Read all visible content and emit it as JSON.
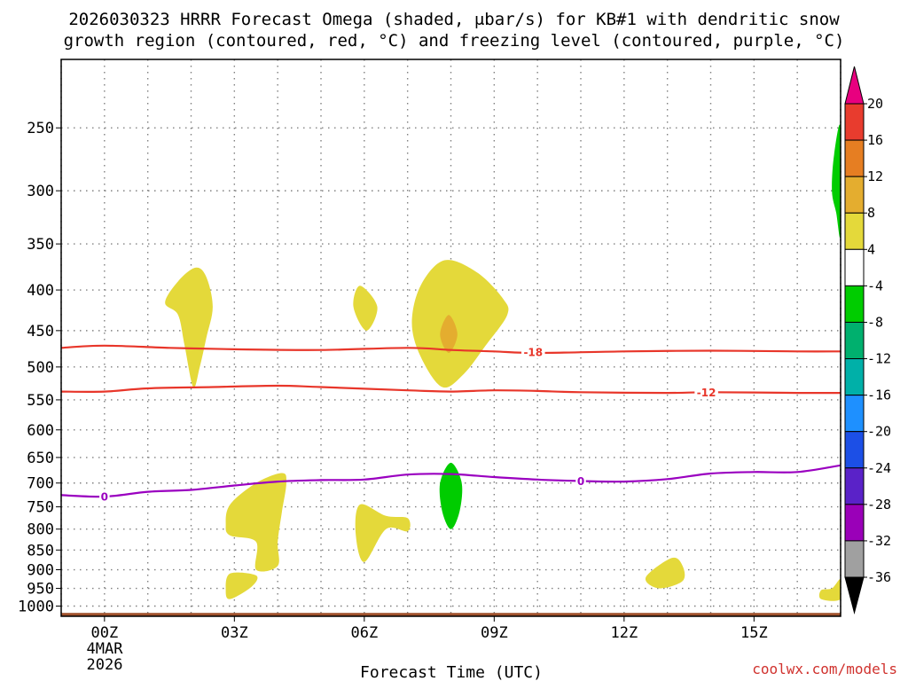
{
  "chart_data": {
    "type": "time-height cross section",
    "title_line1": "2026030323 HRRR Forecast Omega (shaded, μbar/s) for KB#1 with dendritic snow",
    "title_line2": "growth region (contoured, red, °C) and freezing level (contoured, purple, °C)",
    "xlabel": "Forecast Time (UTC)",
    "x_unit": "forecast hour",
    "xlim": [
      -1.0,
      17.0
    ],
    "x_ticks": [
      {
        "hour": 0,
        "label": "00Z"
      },
      {
        "hour": 3,
        "label": "03Z"
      },
      {
        "hour": 6,
        "label": "06Z"
      },
      {
        "hour": 9,
        "label": "09Z"
      },
      {
        "hour": 12,
        "label": "12Z"
      },
      {
        "hour": 15,
        "label": "15Z"
      }
    ],
    "date_label_line1": "4MAR",
    "date_label_line2": "2026",
    "y_unit": "hPa (log-pressure)",
    "ylim": [
      1030,
      205
    ],
    "y_ticks": [
      250,
      300,
      350,
      400,
      450,
      500,
      550,
      600,
      650,
      700,
      750,
      800,
      850,
      900,
      950,
      1000
    ],
    "y_tick_labels": [
      "250",
      "300",
      "350",
      "400",
      "450",
      "500",
      "550",
      "600",
      "650",
      "700",
      "750",
      "800",
      "850",
      "900",
      "950",
      "1000"
    ],
    "grid": true,
    "ground_level_hpa": 1020,
    "colorbar": {
      "levels": [
        "20",
        "16",
        "12",
        "8",
        "4",
        "-4",
        "-8",
        "-12",
        "-16",
        "-20",
        "-24",
        "-28",
        "-32",
        "-36"
      ],
      "colors": [
        "#e8007f",
        "#e83c2e",
        "#e67e22",
        "#e4ad2f",
        "#e4d93a",
        "#ffffff",
        "#00cc00",
        "#00b06e",
        "#00b0a8",
        "#1e90ff",
        "#1c4fe6",
        "#5a22c8",
        "#9a00b8",
        "#a0a0a0",
        "#000000"
      ]
    },
    "contours": [
      {
        "name": "dgz-minus-18",
        "label": "-18",
        "color": "#e8362a",
        "points": [
          [
            -1,
            473
          ],
          [
            0,
            470
          ],
          [
            1.5,
            473
          ],
          [
            3,
            475
          ],
          [
            5,
            476
          ],
          [
            7,
            473
          ],
          [
            8,
            476
          ],
          [
            9,
            478
          ],
          [
            10,
            480
          ],
          [
            12,
            478
          ],
          [
            14,
            477
          ],
          [
            16,
            478
          ],
          [
            17,
            478
          ]
        ]
      },
      {
        "name": "dgz-minus-12",
        "label": "-12",
        "color": "#e8362a",
        "points": [
          [
            -1,
            537
          ],
          [
            0,
            537
          ],
          [
            1,
            532
          ],
          [
            2.5,
            530
          ],
          [
            4,
            528
          ],
          [
            5,
            530
          ],
          [
            7,
            535
          ],
          [
            8,
            537
          ],
          [
            9,
            535
          ],
          [
            10,
            536
          ],
          [
            11,
            538
          ],
          [
            13,
            539
          ],
          [
            14,
            538
          ],
          [
            16,
            539
          ],
          [
            17,
            539
          ]
        ]
      },
      {
        "name": "freezing-level",
        "label": "0",
        "color": "#9a00c0",
        "points": [
          [
            -1,
            725
          ],
          [
            0,
            728
          ],
          [
            1,
            718
          ],
          [
            2,
            714
          ],
          [
            3,
            705
          ],
          [
            4,
            697
          ],
          [
            5,
            694
          ],
          [
            6,
            693
          ],
          [
            7,
            683
          ],
          [
            8,
            682
          ],
          [
            9,
            688
          ],
          [
            10,
            693
          ],
          [
            11,
            696
          ],
          [
            12,
            697
          ],
          [
            13,
            692
          ],
          [
            14,
            681
          ],
          [
            15,
            678
          ],
          [
            16,
            678
          ],
          [
            17,
            665
          ]
        ]
      }
    ],
    "contour_labels": [
      {
        "text": "-18",
        "hour": 9.9,
        "hpa": 479,
        "color": "#e8362a"
      },
      {
        "text": "-12",
        "hour": 13.9,
        "hpa": 538,
        "color": "#e8362a"
      },
      {
        "text": "0",
        "hour": 0.0,
        "hpa": 728,
        "color": "#9a00c0"
      },
      {
        "text": "0",
        "hour": 11.0,
        "hpa": 696,
        "color": "#9a00c0"
      }
    ],
    "shaded_regions": [
      {
        "name": "omega-4to8-a",
        "range": "4 to 8",
        "color": "#e4d93a",
        "points": [
          [
            2.1,
            375
          ],
          [
            2.35,
            385
          ],
          [
            2.5,
            420
          ],
          [
            2.35,
            460
          ],
          [
            2.2,
            500
          ],
          [
            2.05,
            530
          ],
          [
            1.85,
            470
          ],
          [
            1.7,
            430
          ],
          [
            1.4,
            415
          ],
          [
            1.7,
            390
          ]
        ]
      },
      {
        "name": "omega-4to8-b",
        "range": "4 to 8",
        "color": "#e4d93a",
        "points": [
          [
            5.9,
            395
          ],
          [
            6.3,
            420
          ],
          [
            6.05,
            450
          ],
          [
            5.75,
            420
          ]
        ]
      },
      {
        "name": "omega-4to8-c",
        "range": "4 to 8",
        "color": "#e4d93a",
        "points": [
          [
            7.85,
            367
          ],
          [
            8.6,
            380
          ],
          [
            9.2,
            410
          ],
          [
            9.3,
            430
          ],
          [
            8.8,
            470
          ],
          [
            8.3,
            510
          ],
          [
            7.8,
            530
          ],
          [
            7.3,
            485
          ],
          [
            7.1,
            440
          ],
          [
            7.3,
            395
          ]
        ]
      },
      {
        "name": "omega-8to12-a",
        "range": "8 to 12",
        "color": "#e4ad2f",
        "points": [
          [
            7.95,
            430
          ],
          [
            8.15,
            455
          ],
          [
            7.95,
            480
          ],
          [
            7.75,
            455
          ]
        ]
      },
      {
        "name": "omega-4to8-d",
        "range": "4 to 8",
        "color": "#e4d93a",
        "points": [
          [
            4.1,
            680
          ],
          [
            4.2,
            700
          ],
          [
            4.1,
            760
          ],
          [
            4.0,
            830
          ],
          [
            4.0,
            890
          ],
          [
            3.5,
            900
          ],
          [
            3.5,
            830
          ],
          [
            2.9,
            815
          ],
          [
            2.8,
            790
          ],
          [
            2.9,
            745
          ],
          [
            3.5,
            700
          ]
        ]
      },
      {
        "name": "omega-4to8-e",
        "range": "4 to 8",
        "color": "#e4d93a",
        "points": [
          [
            5.9,
            745
          ],
          [
            6.5,
            770
          ],
          [
            7.0,
            775
          ],
          [
            7.0,
            805
          ],
          [
            6.5,
            800
          ],
          [
            6.0,
            880
          ],
          [
            5.8,
            810
          ]
        ]
      },
      {
        "name": "omega-4to8-f",
        "range": "4 to 8",
        "color": "#e4d93a",
        "points": [
          [
            2.9,
            910
          ],
          [
            3.5,
            915
          ],
          [
            3.4,
            945
          ],
          [
            2.9,
            980
          ],
          [
            2.8,
            955
          ]
        ]
      },
      {
        "name": "omega-4to8-g",
        "range": "4 to 8",
        "color": "#e4d93a",
        "points": [
          [
            13.1,
            870
          ],
          [
            13.35,
            890
          ],
          [
            13.35,
            930
          ],
          [
            12.8,
            950
          ],
          [
            12.5,
            920
          ]
        ]
      },
      {
        "name": "omega-4to8-h",
        "range": "4 to 8",
        "color": "#e4d93a",
        "points": [
          [
            17.0,
            925
          ],
          [
            16.8,
            950
          ],
          [
            16.55,
            955
          ],
          [
            16.55,
            980
          ],
          [
            17.0,
            980
          ]
        ]
      },
      {
        "name": "omega-minus4-minus8-a",
        "range": "-4 to -8",
        "color": "#00cc00",
        "points": [
          [
            8.0,
            660
          ],
          [
            8.25,
            700
          ],
          [
            8.2,
            760
          ],
          [
            8.0,
            800
          ],
          [
            7.8,
            760
          ],
          [
            7.75,
            700
          ]
        ]
      },
      {
        "name": "omega-minus4-minus8-b",
        "range": "-4 to -8",
        "color": "#00cc00",
        "points": [
          [
            17.0,
            250
          ],
          [
            16.85,
            270
          ],
          [
            16.8,
            300
          ],
          [
            16.9,
            320
          ],
          [
            17.0,
            340
          ]
        ]
      }
    ]
  },
  "credit": "coolwx.com/models"
}
